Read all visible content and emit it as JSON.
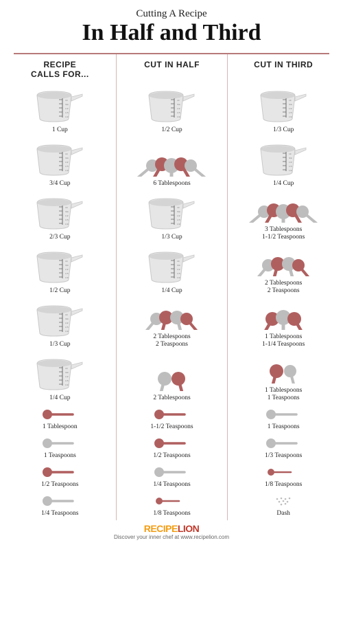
{
  "header": {
    "subtitle": "Cutting A Recipe",
    "title": "In Half and Third"
  },
  "column_headers": [
    "RECIPE\nCALLS FOR...",
    "CUT IN HALF",
    "CUT IN THIRD"
  ],
  "colors": {
    "cup_light": "#e6e6e6",
    "cup_dark": "#c8c8c8",
    "cup_mark": "#6a6a6a",
    "divider": "#d8b5b1",
    "hr": "#b77a7a",
    "spoon_red": "#b05f5f",
    "spoon_gray": "#bdbdbd"
  },
  "rows": [
    {
      "h": "tall",
      "cells": [
        {
          "icon": "cup",
          "label": "1 Cup"
        },
        {
          "icon": "cup",
          "label": "1/2 Cup"
        },
        {
          "icon": "cup",
          "label": "1/3 Cup"
        }
      ]
    },
    {
      "h": "tall",
      "cells": [
        {
          "icon": "cup",
          "label": "3/4 Cup"
        },
        {
          "icon": "spoons5",
          "label": "6 Tablespoons"
        },
        {
          "icon": "cup",
          "label": "1/4 Cup"
        }
      ]
    },
    {
      "h": "tall",
      "cells": [
        {
          "icon": "cup",
          "label": "2/3 Cup"
        },
        {
          "icon": "cup",
          "label": "1/3 Cup"
        },
        {
          "icon": "spoons5",
          "label": "3 Tablespoons\n1-1/2 Teaspoons"
        }
      ]
    },
    {
      "h": "tall",
      "cells": [
        {
          "icon": "cup",
          "label": "1/2 Cup"
        },
        {
          "icon": "cup",
          "label": "1/4 Cup"
        },
        {
          "icon": "spoons4",
          "label": "2 Tablespoons\n2 Teaspoons"
        }
      ]
    },
    {
      "h": "tall",
      "cells": [
        {
          "icon": "cup",
          "label": "1/3 Cup"
        },
        {
          "icon": "spoons4",
          "label": "2 Tablespoons\n2 Teaspoons"
        },
        {
          "icon": "spoons3",
          "label": "1 Tablespoons\n1-1/4 Teaspoons"
        }
      ]
    },
    {
      "h": "tall",
      "cells": [
        {
          "icon": "cup",
          "label": "1/4 Cup"
        },
        {
          "icon": "spoons2",
          "label": "2 Tablespoons"
        },
        {
          "icon": "spoons2b",
          "label": "1 Tablespoons\n1 Teaspoons"
        }
      ]
    },
    {
      "h": "short",
      "cells": [
        {
          "icon": "spoon_red",
          "label": "1 Tablespoon"
        },
        {
          "icon": "spoon_red",
          "label": "1-1/2 Teaspoons"
        },
        {
          "icon": "spoon_gray",
          "label": "1 Teaspoons"
        }
      ]
    },
    {
      "h": "short",
      "cells": [
        {
          "icon": "spoon_gray",
          "label": "1 Teaspoons"
        },
        {
          "icon": "spoon_red",
          "label": "1/2 Teaspoons"
        },
        {
          "icon": "spoon_gray",
          "label": "1/3 Teaspoons"
        }
      ]
    },
    {
      "h": "short",
      "cells": [
        {
          "icon": "spoon_red",
          "label": "1/2 Teaspoons"
        },
        {
          "icon": "spoon_gray",
          "label": "1/4 Teaspoons"
        },
        {
          "icon": "spoon_red_sm",
          "label": "1/8 Teaspoons"
        }
      ]
    },
    {
      "h": "short",
      "cells": [
        {
          "icon": "spoon_gray",
          "label": "1/4 Teaspoons"
        },
        {
          "icon": "spoon_red_sm",
          "label": "1/8 Teaspoons"
        },
        {
          "icon": "dash",
          "label": "Dash"
        }
      ]
    }
  ],
  "footer": {
    "brand_left": "RECIPE",
    "brand_right": "LION",
    "tagline": "Discover your inner chef at www.recipelion.com"
  },
  "style": {
    "title_fontsize": 34,
    "subtitle_fontsize": 15,
    "header_fontsize": 12,
    "label_fontsize": 9.5,
    "tall_row_height": 78,
    "short_row_height": 42
  }
}
